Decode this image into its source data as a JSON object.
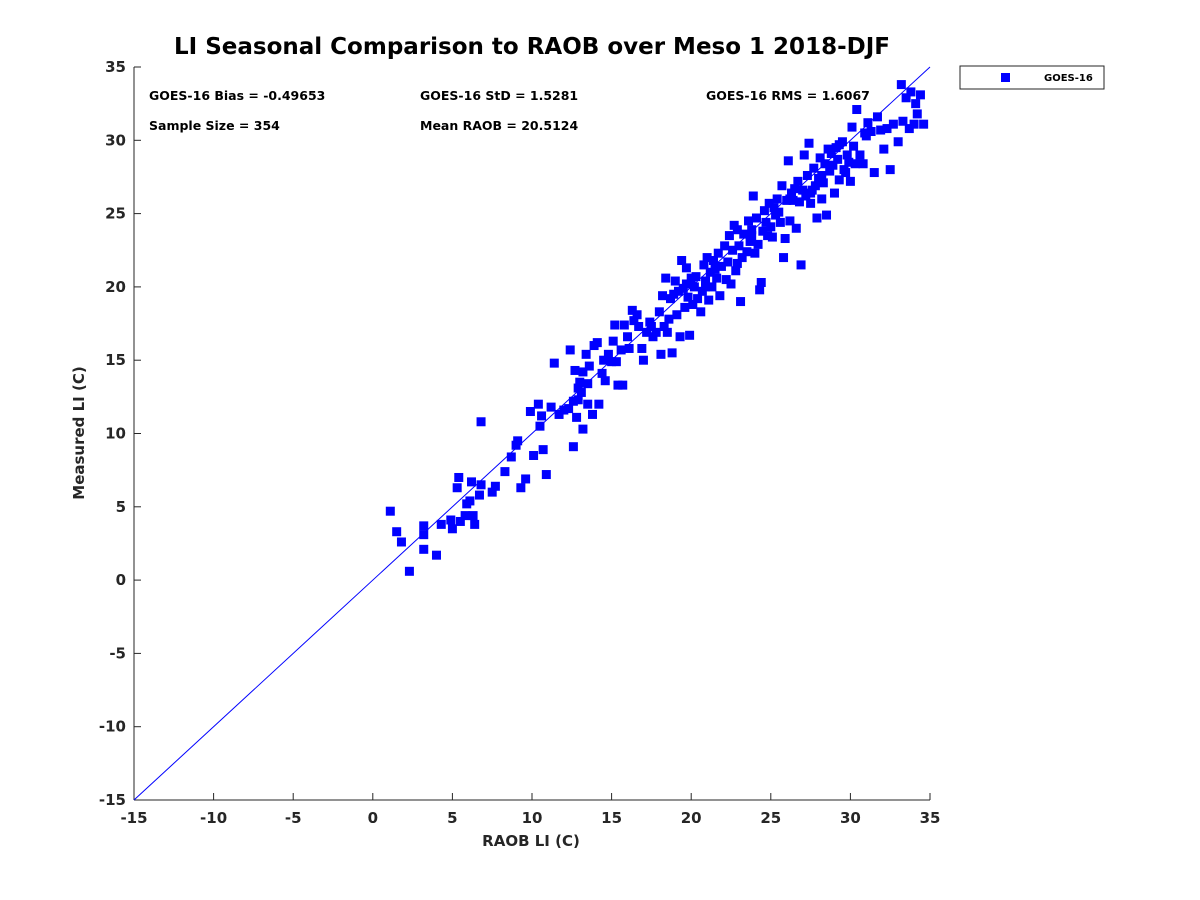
{
  "chart_data": {
    "type": "scatter",
    "title": "LI Seasonal Comparison to RAOB over Meso 1 2018-DJF",
    "xlabel": "RAOB LI (C)",
    "ylabel": "Measured LI (C)",
    "xlim": [
      -15,
      35
    ],
    "ylim": [
      -15,
      35
    ],
    "xticks": [
      "-15",
      "-10",
      "-5",
      "0",
      "5",
      "10",
      "15",
      "20",
      "25",
      "30",
      "35"
    ],
    "yticks": [
      "-15",
      "-10",
      "-5",
      "0",
      "5",
      "10",
      "15",
      "20",
      "25",
      "30",
      "35"
    ],
    "grid": false,
    "legend": {
      "position": "top-right outside",
      "entries": [
        "GOES-16"
      ]
    },
    "reference_line": {
      "label": "1:1",
      "from": [
        -15,
        -15
      ],
      "to": [
        35,
        35
      ]
    },
    "stats": {
      "bias": "GOES-16 Bias = -0.49653",
      "std": "GOES-16 StD = 1.5281",
      "rms": "GOES-16 RMS = 1.6067",
      "sample_size": "Sample Size = 354",
      "mean_raob": "Mean RAOB = 20.5124"
    },
    "colors": {
      "marker": "#0000ff",
      "line": "#0000ff",
      "axis": "#262626"
    },
    "series": [
      {
        "name": "GOES-16",
        "marker": "square",
        "points": [
          [
            1.1,
            4.7
          ],
          [
            1.5,
            3.3
          ],
          [
            1.8,
            2.6
          ],
          [
            2.3,
            0.6
          ],
          [
            3.2,
            3.7
          ],
          [
            3.2,
            3.1
          ],
          [
            3.2,
            2.1
          ],
          [
            4.0,
            1.7
          ],
          [
            4.3,
            3.8
          ],
          [
            4.9,
            4.1
          ],
          [
            5.0,
            3.5
          ],
          [
            5.3,
            6.3
          ],
          [
            5.4,
            7.0
          ],
          [
            5.5,
            4.0
          ],
          [
            5.8,
            4.4
          ],
          [
            5.9,
            5.2
          ],
          [
            6.1,
            5.4
          ],
          [
            6.2,
            6.7
          ],
          [
            6.3,
            4.4
          ],
          [
            6.4,
            3.8
          ],
          [
            6.7,
            5.8
          ],
          [
            6.8,
            6.5
          ],
          [
            6.8,
            10.8
          ],
          [
            7.5,
            6.0
          ],
          [
            7.7,
            6.4
          ],
          [
            8.3,
            7.4
          ],
          [
            8.7,
            8.4
          ],
          [
            9.0,
            9.2
          ],
          [
            9.1,
            9.5
          ],
          [
            9.3,
            6.3
          ],
          [
            9.6,
            6.9
          ],
          [
            9.9,
            11.5
          ],
          [
            10.1,
            8.5
          ],
          [
            10.4,
            12.0
          ],
          [
            10.5,
            10.5
          ],
          [
            10.6,
            11.2
          ],
          [
            10.7,
            8.9
          ],
          [
            10.9,
            7.2
          ],
          [
            11.2,
            11.8
          ],
          [
            11.4,
            14.8
          ],
          [
            11.7,
            11.3
          ],
          [
            12.0,
            11.6
          ],
          [
            12.3,
            11.7
          ],
          [
            12.4,
            15.7
          ],
          [
            12.6,
            12.2
          ],
          [
            12.6,
            9.1
          ],
          [
            12.7,
            14.3
          ],
          [
            12.8,
            11.1
          ],
          [
            12.9,
            12.3
          ],
          [
            13.0,
            13.5
          ],
          [
            13.1,
            12.8
          ],
          [
            13.2,
            14.2
          ],
          [
            13.2,
            10.3
          ],
          [
            13.4,
            15.4
          ],
          [
            13.5,
            13.4
          ],
          [
            13.5,
            12.0
          ],
          [
            13.6,
            14.6
          ],
          [
            13.8,
            11.3
          ],
          [
            13.9,
            16.0
          ],
          [
            14.1,
            16.2
          ],
          [
            14.2,
            12.0
          ],
          [
            14.4,
            14.1
          ],
          [
            14.6,
            13.6
          ],
          [
            14.8,
            15.4
          ],
          [
            15.0,
            14.9
          ],
          [
            15.1,
            16.3
          ],
          [
            15.2,
            17.4
          ],
          [
            15.3,
            14.9
          ],
          [
            15.4,
            13.3
          ],
          [
            15.6,
            15.7
          ],
          [
            15.7,
            13.3
          ],
          [
            15.8,
            17.4
          ],
          [
            16.1,
            15.8
          ],
          [
            16.3,
            18.4
          ],
          [
            16.4,
            17.7
          ],
          [
            16.6,
            18.1
          ],
          [
            16.7,
            17.3
          ],
          [
            16.9,
            15.8
          ],
          [
            17.0,
            15.0
          ],
          [
            17.2,
            16.9
          ],
          [
            17.4,
            17.6
          ],
          [
            17.6,
            16.6
          ],
          [
            17.8,
            16.9
          ],
          [
            18.0,
            18.3
          ],
          [
            18.1,
            15.4
          ],
          [
            18.2,
            19.4
          ],
          [
            18.3,
            17.3
          ],
          [
            18.4,
            20.6
          ],
          [
            18.5,
            16.9
          ],
          [
            18.6,
            17.8
          ],
          [
            18.7,
            19.2
          ],
          [
            18.8,
            15.5
          ],
          [
            19.0,
            20.4
          ],
          [
            19.1,
            18.1
          ],
          [
            19.2,
            19.7
          ],
          [
            19.3,
            16.6
          ],
          [
            19.4,
            21.8
          ],
          [
            19.5,
            19.9
          ],
          [
            19.6,
            18.6
          ],
          [
            19.7,
            21.3
          ],
          [
            19.8,
            19.3
          ],
          [
            19.9,
            16.7
          ],
          [
            20.0,
            20.6
          ],
          [
            20.1,
            18.8
          ],
          [
            20.2,
            20.0
          ],
          [
            20.3,
            20.7
          ],
          [
            20.4,
            19.2
          ],
          [
            20.6,
            18.3
          ],
          [
            20.7,
            19.7
          ],
          [
            20.8,
            21.5
          ],
          [
            20.9,
            20.4
          ],
          [
            21.0,
            22.0
          ],
          [
            21.1,
            19.1
          ],
          [
            21.2,
            21.0
          ],
          [
            21.3,
            20.0
          ],
          [
            21.4,
            21.8
          ],
          [
            21.6,
            20.6
          ],
          [
            21.7,
            22.3
          ],
          [
            21.8,
            19.4
          ],
          [
            21.9,
            21.4
          ],
          [
            22.1,
            22.8
          ],
          [
            22.2,
            20.5
          ],
          [
            22.3,
            21.7
          ],
          [
            22.4,
            23.5
          ],
          [
            22.5,
            20.2
          ],
          [
            22.6,
            22.5
          ],
          [
            22.7,
            24.2
          ],
          [
            22.8,
            21.1
          ],
          [
            22.9,
            23.9
          ],
          [
            23.0,
            22.8
          ],
          [
            23.1,
            19.0
          ],
          [
            23.2,
            22.0
          ],
          [
            23.3,
            23.6
          ],
          [
            23.5,
            22.4
          ],
          [
            23.6,
            24.5
          ],
          [
            23.7,
            23.1
          ],
          [
            23.8,
            23.9
          ],
          [
            23.9,
            26.2
          ],
          [
            24.0,
            22.3
          ],
          [
            24.1,
            24.7
          ],
          [
            24.2,
            22.9
          ],
          [
            24.3,
            19.8
          ],
          [
            24.4,
            20.3
          ],
          [
            24.5,
            23.8
          ],
          [
            24.6,
            25.2
          ],
          [
            24.7,
            24.4
          ],
          [
            24.8,
            23.5
          ],
          [
            24.9,
            25.7
          ],
          [
            25.0,
            24.1
          ],
          [
            25.1,
            23.4
          ],
          [
            25.2,
            25.4
          ],
          [
            25.3,
            24.9
          ],
          [
            25.4,
            26.0
          ],
          [
            25.6,
            24.4
          ],
          [
            25.7,
            26.9
          ],
          [
            25.8,
            22.0
          ],
          [
            25.9,
            23.3
          ],
          [
            26.0,
            25.9
          ],
          [
            26.1,
            28.6
          ],
          [
            26.2,
            24.5
          ],
          [
            26.3,
            26.4
          ],
          [
            26.4,
            25.9
          ],
          [
            26.5,
            26.7
          ],
          [
            26.6,
            24.0
          ],
          [
            26.7,
            27.2
          ],
          [
            26.8,
            25.8
          ],
          [
            26.9,
            21.5
          ],
          [
            27.0,
            26.6
          ],
          [
            27.1,
            29.0
          ],
          [
            27.2,
            26.2
          ],
          [
            27.3,
            27.6
          ],
          [
            27.4,
            29.8
          ],
          [
            27.5,
            25.7
          ],
          [
            27.6,
            26.6
          ],
          [
            27.7,
            28.1
          ],
          [
            27.8,
            26.9
          ],
          [
            27.9,
            24.7
          ],
          [
            28.0,
            27.4
          ],
          [
            28.1,
            28.8
          ],
          [
            28.2,
            26.0
          ],
          [
            28.3,
            27.1
          ],
          [
            28.4,
            28.4
          ],
          [
            28.5,
            24.9
          ],
          [
            28.6,
            29.4
          ],
          [
            28.7,
            27.9
          ],
          [
            28.8,
            29.1
          ],
          [
            28.9,
            28.3
          ],
          [
            29.0,
            26.4
          ],
          [
            29.1,
            29.5
          ],
          [
            29.2,
            28.7
          ],
          [
            29.3,
            27.3
          ],
          [
            29.5,
            29.9
          ],
          [
            29.6,
            28.0
          ],
          [
            29.7,
            27.8
          ],
          [
            29.8,
            29.0
          ],
          [
            29.9,
            28.5
          ],
          [
            30.0,
            27.2
          ],
          [
            30.1,
            30.9
          ],
          [
            30.2,
            29.6
          ],
          [
            30.3,
            28.4
          ],
          [
            30.4,
            32.1
          ],
          [
            30.6,
            29.0
          ],
          [
            30.8,
            28.4
          ],
          [
            31.0,
            30.3
          ],
          [
            31.1,
            31.2
          ],
          [
            31.3,
            30.6
          ],
          [
            31.5,
            27.8
          ],
          [
            31.7,
            31.6
          ],
          [
            31.9,
            30.7
          ],
          [
            32.1,
            29.4
          ],
          [
            32.3,
            30.8
          ],
          [
            32.5,
            28.0
          ],
          [
            32.7,
            31.1
          ],
          [
            33.0,
            29.9
          ],
          [
            33.2,
            33.8
          ],
          [
            33.3,
            31.3
          ],
          [
            33.5,
            32.9
          ],
          [
            33.7,
            30.8
          ],
          [
            33.8,
            33.3
          ],
          [
            34.0,
            31.1
          ],
          [
            34.1,
            32.5
          ],
          [
            34.2,
            31.8
          ],
          [
            34.4,
            33.1
          ],
          [
            34.6,
            31.1
          ],
          [
            26.2,
            26.0
          ],
          [
            27.5,
            26.4
          ],
          [
            28.2,
            27.6
          ],
          [
            22.9,
            21.6
          ],
          [
            21.5,
            21.2
          ],
          [
            19.7,
            20.2
          ],
          [
            17.5,
            17.3
          ],
          [
            16.0,
            16.6
          ],
          [
            14.5,
            15.0
          ],
          [
            12.9,
            13.1
          ],
          [
            23.8,
            23.5
          ],
          [
            25.5,
            25.1
          ],
          [
            29.3,
            29.7
          ],
          [
            30.9,
            30.5
          ],
          [
            20.9,
            20.0
          ],
          [
            18.9,
            19.5
          ]
        ]
      }
    ]
  }
}
